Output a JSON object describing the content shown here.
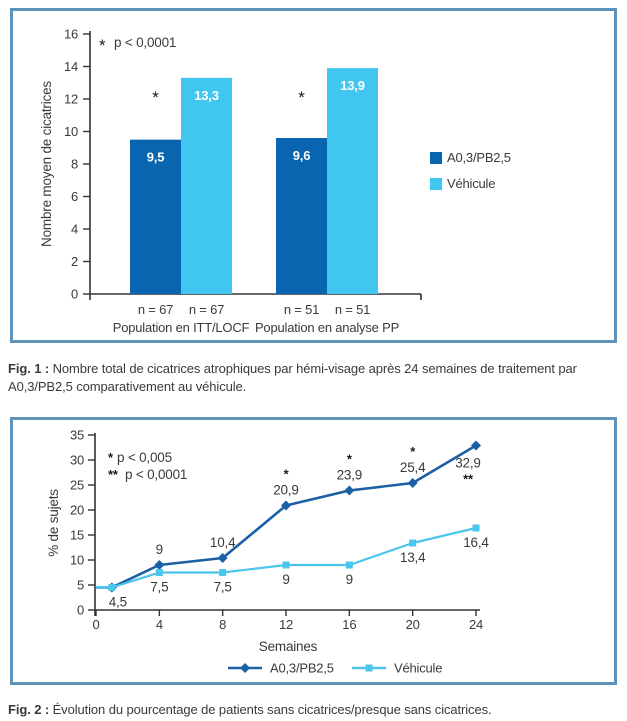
{
  "colors": {
    "panel_border": "#5e92b8",
    "bar_dark": "#0a65b0",
    "bar_light": "#41c6ef",
    "line_dark": "#1b60a5",
    "line_light": "#4cc5ec",
    "axis": "#333333",
    "text": "#3a3a3a",
    "value_label": "#ffffff",
    "sig": "#1a1a1a"
  },
  "figure1_caption": {
    "prefix": "Fig. 1 :",
    "text": " Nombre total de cicatrices atrophiques par hémi-visage après 24 semaines de traitement par A0,3/PB2,5 comparativement au véhicule."
  },
  "figure2_caption": {
    "prefix": "Fig. 2 :",
    "text": " Évolution du pourcentage de patients sans cicatrices/presque sans cicatrices."
  },
  "chart_data": [
    {
      "type": "bar",
      "title": "",
      "ylabel": "Nombre moyen de cicatrices",
      "xlabel": "",
      "ylim": [
        0,
        16
      ],
      "ytick_step": 2,
      "annotation": {
        "sig": "*",
        "text": "p < 0,0001"
      },
      "sig_marker_y_value": 12,
      "groups": [
        {
          "label": "Population en ITT/LOCF",
          "bars": [
            {
              "series": "A0,3/PB2,5",
              "n": "n = 67",
              "value": 9.5,
              "label": "9,5",
              "sig": "*"
            },
            {
              "series": "Véhicule",
              "n": "n = 67",
              "value": 13.3,
              "label": "13,3",
              "sig": ""
            }
          ]
        },
        {
          "label": "Population en analyse PP",
          "bars": [
            {
              "series": "A0,3/PB2,5",
              "n": "n = 51",
              "value": 9.6,
              "label": "9,6",
              "sig": "*"
            },
            {
              "series": "Véhicule",
              "n": "n = 51",
              "value": 13.9,
              "label": "13,9",
              "sig": ""
            }
          ]
        }
      ],
      "legend": [
        {
          "label": "A0,3/PB2,5",
          "color_key": "bar_dark"
        },
        {
          "label": "Véhicule",
          "color_key": "bar_light"
        }
      ],
      "legend_position": "right",
      "grid": false
    },
    {
      "type": "line",
      "title": "",
      "xlabel": "Semaines",
      "ylabel": "% de sujets",
      "xlim": [
        0,
        24
      ],
      "ylim": [
        0,
        35
      ],
      "xticks": [
        0,
        4,
        8,
        12,
        16,
        20,
        24
      ],
      "ytick_step": 5,
      "annotations": [
        {
          "sig": "*",
          "text": "p < 0,005"
        },
        {
          "sig": "**",
          "text": "p < 0,0001"
        }
      ],
      "x": [
        0,
        1,
        4,
        8,
        12,
        16,
        20,
        24
      ],
      "series": [
        {
          "name": "A0,3/PB2,5",
          "color_key": "line_dark",
          "marker": "diamond",
          "labels_side": "above",
          "values": [
            4.5,
            4.5,
            9,
            10.4,
            20.9,
            23.9,
            25.4,
            32.9
          ],
          "point_labels": [
            "",
            "",
            "9",
            "10,4",
            "20,9",
            "23,9",
            "25,4",
            "32,9"
          ],
          "point_sig": [
            "",
            "",
            "",
            "",
            "*",
            "*",
            "*",
            "**"
          ]
        },
        {
          "name": "Véhicule",
          "color_key": "line_light",
          "marker": "square",
          "labels_side": "below",
          "values": [
            4.5,
            4.5,
            7.5,
            7.5,
            9,
            9,
            13.4,
            16.4
          ],
          "point_labels": [
            "",
            "4,5",
            "7,5",
            "7,5",
            "9",
            "9",
            "13,4",
            "16,4"
          ],
          "point_sig": [
            "",
            "",
            "",
            "",
            "",
            "",
            "",
            ""
          ]
        }
      ],
      "legend": [
        {
          "label": "A0,3/PB2,5",
          "color_key": "line_dark",
          "marker": "diamond"
        },
        {
          "label": "Véhicule",
          "color_key": "line_light",
          "marker": "square"
        }
      ],
      "legend_position": "bottom",
      "grid": false
    }
  ]
}
